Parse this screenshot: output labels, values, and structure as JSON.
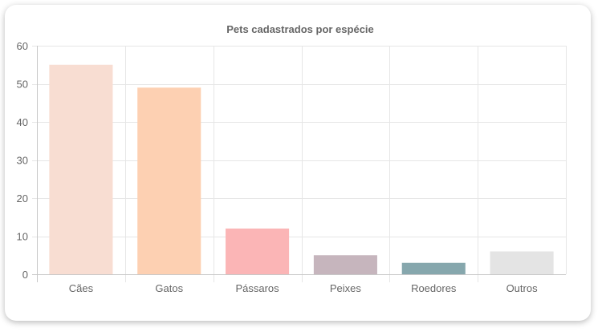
{
  "chart_data": {
    "type": "bar",
    "title": "Pets cadastrados por espécie",
    "categories": [
      "Cães",
      "Gatos",
      "Pássaros",
      "Peixes",
      "Roedores",
      "Outros"
    ],
    "values": [
      55,
      49,
      12,
      5,
      3,
      6
    ],
    "colors": [
      "#f8ddd2",
      "#fdd0b2",
      "#fbb5b6",
      "#c6b5bd",
      "#86a7ad",
      "#e4e4e4"
    ],
    "ylim": [
      0,
      60
    ],
    "yticks": [
      0,
      10,
      20,
      30,
      40,
      50,
      60
    ],
    "grid": true,
    "legend": "none"
  }
}
